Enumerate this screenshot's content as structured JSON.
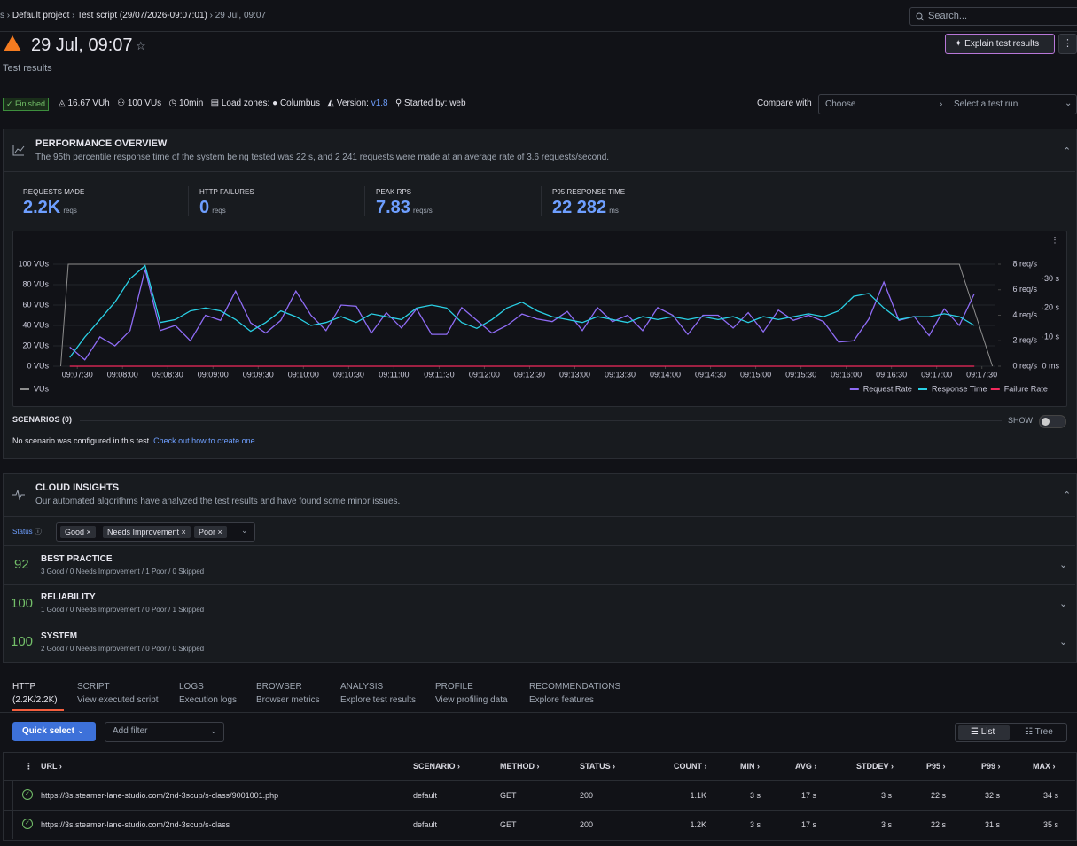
{
  "breadcrumb": [
    "s",
    "Default project",
    "Test script (29/07/2026-09:07:01)",
    "29 Jul, 09:07"
  ],
  "search": "Search...",
  "header": {
    "title": "29 Jul, 09:07",
    "subtitle": "Test results",
    "button": "Explain test results"
  },
  "meta": {
    "status": "Finished",
    "vuh": "16.67 VUh",
    "vus": "100 VUs",
    "duration": "10min",
    "load_zones_label": "Load zones:",
    "load_zone": "Columbus",
    "version_label": "Version:",
    "version": "v1.8",
    "started_label": "Started by:",
    "started_by": "web"
  },
  "compare": {
    "label": "Compare with",
    "choose": "Choose",
    "run": "Select a test run"
  },
  "performance": {
    "title": "PERFORMANCE OVERVIEW",
    "description": "The 95th percentile response time of the system being tested was 22 s, and 2 241 requests were made at an average rate of 3.6 requests/second.",
    "stats": [
      {
        "label": "REQUESTS MADE",
        "value": "2.2K",
        "unit": "reqs"
      },
      {
        "label": "HTTP FAILURES",
        "value": "0",
        "unit": "reqs"
      },
      {
        "label": "PEAK RPS",
        "value": "7.83",
        "unit": "reqs/s"
      },
      {
        "label": "P95 RESPONSE TIME",
        "value": "22 282",
        "unit": "ms"
      }
    ]
  },
  "chart_data": {
    "type": "line",
    "x": [
      "09:07:25",
      "09:07:35",
      "09:07:45",
      "09:07:55",
      "09:08:05",
      "09:08:15",
      "09:08:25",
      "09:08:35",
      "09:08:45",
      "09:08:55",
      "09:09:05",
      "09:09:15",
      "09:09:25",
      "09:09:35",
      "09:09:45",
      "09:09:55",
      "09:10:05",
      "09:10:15",
      "09:10:25",
      "09:10:35",
      "09:10:45",
      "09:10:55",
      "09:11:05",
      "09:11:15",
      "09:11:25",
      "09:11:35",
      "09:11:45",
      "09:11:55",
      "09:12:05",
      "09:12:15",
      "09:12:25",
      "09:12:35",
      "09:12:45",
      "09:12:55",
      "09:13:05",
      "09:13:15",
      "09:13:25",
      "09:13:35",
      "09:13:45",
      "09:13:55",
      "09:14:05",
      "09:14:15",
      "09:14:25",
      "09:14:35",
      "09:14:45",
      "09:14:55",
      "09:15:05",
      "09:15:15",
      "09:15:25",
      "09:15:35",
      "09:15:45",
      "09:15:55",
      "09:16:05",
      "09:16:15",
      "09:16:25",
      "09:16:35",
      "09:16:45",
      "09:16:55",
      "09:17:05",
      "09:17:15",
      "09:17:25"
    ],
    "xlim": [
      "09:07:14",
      "09:17:39"
    ],
    "xticks": [
      "09:07:30",
      "09:08:00",
      "09:08:30",
      "09:09:00",
      "09:09:30",
      "09:10:00",
      "09:10:30",
      "09:11:00",
      "09:11:30",
      "09:12:00",
      "09:12:30",
      "09:13:00",
      "09:13:30",
      "09:14:00",
      "09:14:30",
      "09:15:00",
      "09:15:30",
      "09:16:00",
      "09:16:30",
      "09:17:00",
      "09:17:30"
    ],
    "ylim": [
      0,
      100
    ],
    "yticks": [
      {
        "value": 0,
        "label": "0 VUs"
      },
      {
        "value": 20,
        "label": "20 VUs"
      },
      {
        "value": 40,
        "label": "40 VUs"
      },
      {
        "value": 60,
        "label": "60 VUs"
      },
      {
        "value": 80,
        "label": "80 VUs"
      },
      {
        "value": 100,
        "label": "100 VUs"
      }
    ],
    "y2lim": [
      0,
      8
    ],
    "y2ticks": [
      {
        "value": 0,
        "label": "0 req/s"
      },
      {
        "value": 2,
        "label": "2 req/s"
      },
      {
        "value": 4,
        "label": "4 req/s"
      },
      {
        "value": 6,
        "label": "6 req/s"
      },
      {
        "value": 8,
        "label": "8 req/s"
      }
    ],
    "y3lim": [
      0,
      35
    ],
    "y3ticks": [
      {
        "value": 0,
        "label": "0 ms"
      },
      {
        "value": 10,
        "label": "10 s"
      },
      {
        "value": 20,
        "label": "20 s"
      },
      {
        "value": 30,
        "label": "30 s"
      }
    ],
    "grid": true,
    "series": [
      {
        "name": "VUs",
        "color": "#8e8e8e",
        "x": [
          "09:07:19",
          "09:07:24",
          "09:17:15",
          "09:17:37"
        ],
        "values": [
          0,
          100,
          100,
          0
        ]
      },
      {
        "name": "Request Rate",
        "color": "#8f6cf5",
        "axis": "y2",
        "values": [
          1.5,
          0.5,
          2.3,
          1.6,
          2.8,
          7.6,
          2.8,
          3.2,
          2.0,
          4.0,
          3.6,
          5.9,
          3.4,
          2.6,
          3.6,
          5.9,
          4.0,
          2.8,
          4.8,
          4.7,
          2.6,
          4.2,
          3.0,
          4.5,
          2.5,
          2.5,
          4.6,
          3.6,
          2.6,
          3.2,
          4.1,
          3.7,
          3.5,
          4.3,
          2.8,
          4.6,
          3.5,
          4.0,
          2.8,
          4.6,
          4.0,
          2.5,
          4.0,
          4.0,
          3.0,
          4.2,
          2.7,
          4.4,
          3.6,
          4.0,
          3.5,
          1.9,
          2.0,
          3.7,
          6.6,
          3.6,
          3.9,
          2.4,
          4.5,
          3.2,
          5.7
        ]
      },
      {
        "name": "Response Time",
        "color": "#2ad0e5",
        "axis": "y3",
        "values": [
          3,
          10,
          16,
          22,
          30,
          34.5,
          15,
          16,
          19,
          20,
          19,
          16,
          12,
          15,
          19,
          17,
          14,
          15,
          17,
          15,
          18,
          17,
          16,
          20,
          21,
          20,
          15,
          13,
          16,
          20,
          22,
          19,
          17,
          16,
          15,
          17,
          16,
          15,
          17,
          16,
          17,
          16,
          17,
          16,
          17,
          15,
          17,
          16,
          17,
          18,
          17,
          19,
          24,
          25,
          20,
          16,
          17,
          17,
          18,
          17,
          14
        ]
      },
      {
        "name": "Failure Rate",
        "color": "#f2295c",
        "axis": "y2",
        "x": [
          "09:07:25",
          "09:17:25"
        ],
        "values": [
          0,
          0
        ]
      }
    ]
  },
  "scenarios": {
    "title": "SCENARIOS (0)",
    "show": "SHOW",
    "text": "No scenario was configured in this test.",
    "link": "Check out how to create one"
  },
  "insights": {
    "title": "CLOUD INSIGHTS",
    "description": "Our automated algorithms have analyzed the test results and have found some minor issues.",
    "filter_label": "Status",
    "chips": [
      "Good",
      "Needs Improvement",
      "Poor"
    ],
    "items": [
      {
        "score": "92",
        "title": "BEST PRACTICE",
        "summary": "3 Good / 0 Needs Improvement / 1 Poor / 0 Skipped"
      },
      {
        "score": "100",
        "title": "RELIABILITY",
        "summary": "1 Good / 0 Needs Improvement / 0 Poor / 1 Skipped"
      },
      {
        "score": "100",
        "title": "SYSTEM",
        "summary": "2 Good / 0 Needs Improvement / 0 Poor / 0 Skipped"
      }
    ]
  },
  "tabs": [
    {
      "title": "HTTP",
      "sub": "(2.2K/2.2K)"
    },
    {
      "title": "SCRIPT",
      "sub": "View executed script"
    },
    {
      "title": "LOGS",
      "sub": "Execution logs"
    },
    {
      "title": "BROWSER",
      "sub": "Browser metrics"
    },
    {
      "title": "ANALYSIS",
      "sub": "Explore test results"
    },
    {
      "title": "PROFILE",
      "sub": "View profiling data"
    },
    {
      "title": "RECOMMENDATIONS",
      "sub": "Explore features"
    }
  ],
  "toolbar": {
    "quick_select": "Quick select",
    "add_filter": "Add filter",
    "views": [
      "List",
      "Tree"
    ]
  },
  "table": {
    "columns": [
      "URL",
      "SCENARIO",
      "METHOD",
      "STATUS",
      "COUNT",
      "MIN",
      "AVG",
      "STDDEV",
      "P95",
      "P99",
      "MAX"
    ],
    "rows": [
      [
        "https://3s.steamer-lane-studio.com/2nd-3scup/s-class/9001001.php",
        "default",
        "GET",
        "200",
        "1.1K",
        "3 s",
        "17 s",
        "3 s",
        "22 s",
        "32 s",
        "34 s"
      ],
      [
        "https://3s.steamer-lane-studio.com/2nd-3scup/s-class",
        "default",
        "GET",
        "200",
        "1.2K",
        "3 s",
        "17 s",
        "3 s",
        "22 s",
        "31 s",
        "35 s"
      ]
    ]
  }
}
